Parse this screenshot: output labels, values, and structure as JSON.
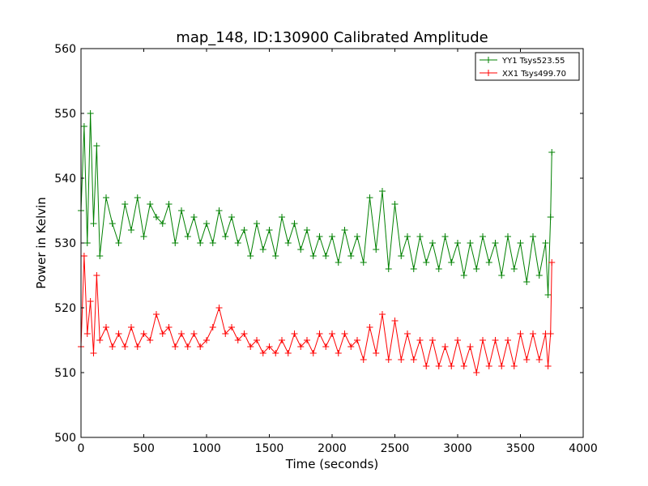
{
  "chart_data": {
    "type": "line",
    "title": "map_148, ID:130900 Calibrated Amplitude",
    "xlabel": "Time (seconds)",
    "ylabel": "Power in Kelvin",
    "xlim": [
      0,
      4000
    ],
    "ylim": [
      500,
      560
    ],
    "xticks": [
      0,
      500,
      1000,
      1500,
      2000,
      2500,
      3000,
      3500,
      4000
    ],
    "yticks": [
      500,
      510,
      520,
      530,
      540,
      550,
      560
    ],
    "grid": false,
    "legend_position": "top-right",
    "marker": "plus",
    "series": [
      {
        "name": "YY1 Tsys523.55",
        "color": "#008000",
        "x": [
          0,
          25,
          50,
          75,
          100,
          125,
          150,
          200,
          250,
          300,
          350,
          400,
          450,
          500,
          550,
          600,
          650,
          700,
          750,
          800,
          850,
          900,
          950,
          1000,
          1050,
          1100,
          1150,
          1200,
          1250,
          1300,
          1350,
          1400,
          1450,
          1500,
          1550,
          1600,
          1650,
          1700,
          1750,
          1800,
          1850,
          1900,
          1950,
          2000,
          2050,
          2100,
          2150,
          2200,
          2250,
          2300,
          2350,
          2400,
          2450,
          2500,
          2550,
          2600,
          2650,
          2700,
          2750,
          2800,
          2850,
          2900,
          2950,
          3000,
          3050,
          3100,
          3150,
          3200,
          3250,
          3300,
          3350,
          3400,
          3450,
          3500,
          3550,
          3600,
          3650,
          3700,
          3720,
          3740,
          3750
        ],
        "values": [
          535,
          548,
          530,
          550,
          533,
          545,
          528,
          537,
          533,
          530,
          536,
          532,
          537,
          531,
          536,
          534,
          533,
          536,
          530,
          535,
          531,
          534,
          530,
          533,
          530,
          535,
          531,
          534,
          530,
          532,
          528,
          533,
          529,
          532,
          528,
          534,
          530,
          533,
          529,
          532,
          528,
          531,
          528,
          531,
          527,
          532,
          528,
          531,
          527,
          537,
          529,
          538,
          526,
          536,
          528,
          531,
          526,
          531,
          527,
          530,
          526,
          531,
          527,
          530,
          525,
          530,
          526,
          531,
          527,
          530,
          525,
          531,
          526,
          530,
          524,
          531,
          525,
          530,
          522,
          534,
          544
        ]
      },
      {
        "name": "XX1 Tsys499.70",
        "color": "#ff0000",
        "x": [
          0,
          25,
          50,
          75,
          100,
          125,
          150,
          200,
          250,
          300,
          350,
          400,
          450,
          500,
          550,
          600,
          650,
          700,
          750,
          800,
          850,
          900,
          950,
          1000,
          1050,
          1100,
          1150,
          1200,
          1250,
          1300,
          1350,
          1400,
          1450,
          1500,
          1550,
          1600,
          1650,
          1700,
          1750,
          1800,
          1850,
          1900,
          1950,
          2000,
          2050,
          2100,
          2150,
          2200,
          2250,
          2300,
          2350,
          2400,
          2450,
          2500,
          2550,
          2600,
          2650,
          2700,
          2750,
          2800,
          2850,
          2900,
          2950,
          3000,
          3050,
          3100,
          3150,
          3200,
          3250,
          3300,
          3350,
          3400,
          3450,
          3500,
          3550,
          3600,
          3650,
          3700,
          3720,
          3740,
          3750
        ],
        "values": [
          514,
          528,
          516,
          521,
          513,
          525,
          515,
          517,
          514,
          516,
          514,
          517,
          514,
          516,
          515,
          519,
          516,
          517,
          514,
          516,
          514,
          516,
          514,
          515,
          517,
          520,
          516,
          517,
          515,
          516,
          514,
          515,
          513,
          514,
          513,
          515,
          513,
          516,
          514,
          515,
          513,
          516,
          514,
          516,
          513,
          516,
          514,
          515,
          512,
          517,
          513,
          519,
          512,
          518,
          512,
          516,
          512,
          515,
          511,
          515,
          511,
          514,
          511,
          515,
          511,
          514,
          510,
          515,
          511,
          515,
          511,
          515,
          511,
          516,
          512,
          516,
          512,
          516,
          511,
          516,
          527
        ]
      }
    ]
  }
}
